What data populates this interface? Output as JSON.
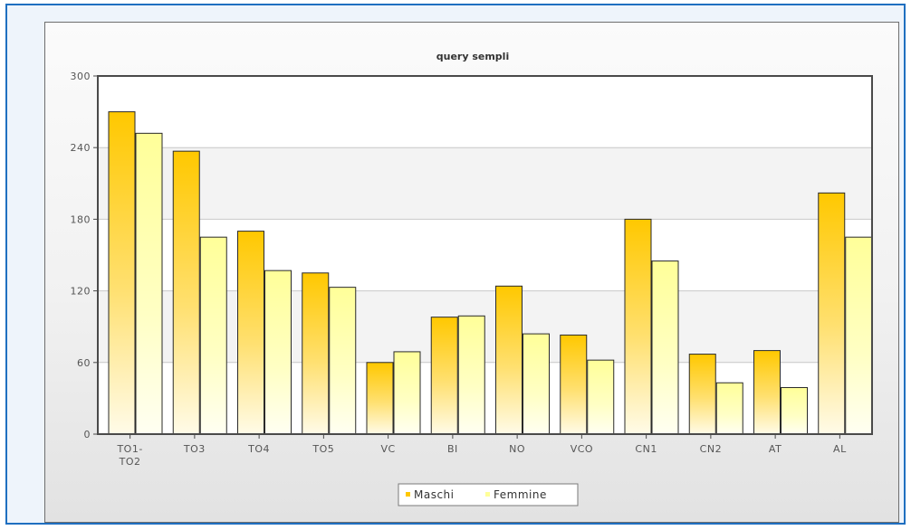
{
  "chart_data": {
    "type": "bar",
    "title": "query sempli",
    "xlabel": "",
    "ylabel": "",
    "ylim": [
      0,
      300
    ],
    "yticks": [
      "0",
      "60",
      "120",
      "180",
      "240",
      "300"
    ],
    "grid": true,
    "legend_position": "bottom-center",
    "categories": [
      "TO1-\nTO2",
      "TO3",
      "TO4",
      "TO5",
      "VC",
      "BI",
      "NO",
      "VCO",
      "CN1",
      "CN2",
      "AT",
      "AL"
    ],
    "series": [
      {
        "name": "Maschi",
        "color": "#ffc800",
        "values": [
          270,
          237,
          170,
          135,
          60,
          98,
          124,
          83,
          180,
          67,
          70,
          202
        ]
      },
      {
        "name": "Femmine",
        "color": "#ffff99",
        "values": [
          252,
          165,
          137,
          123,
          69,
          99,
          84,
          62,
          145,
          43,
          39,
          165
        ]
      }
    ]
  }
}
